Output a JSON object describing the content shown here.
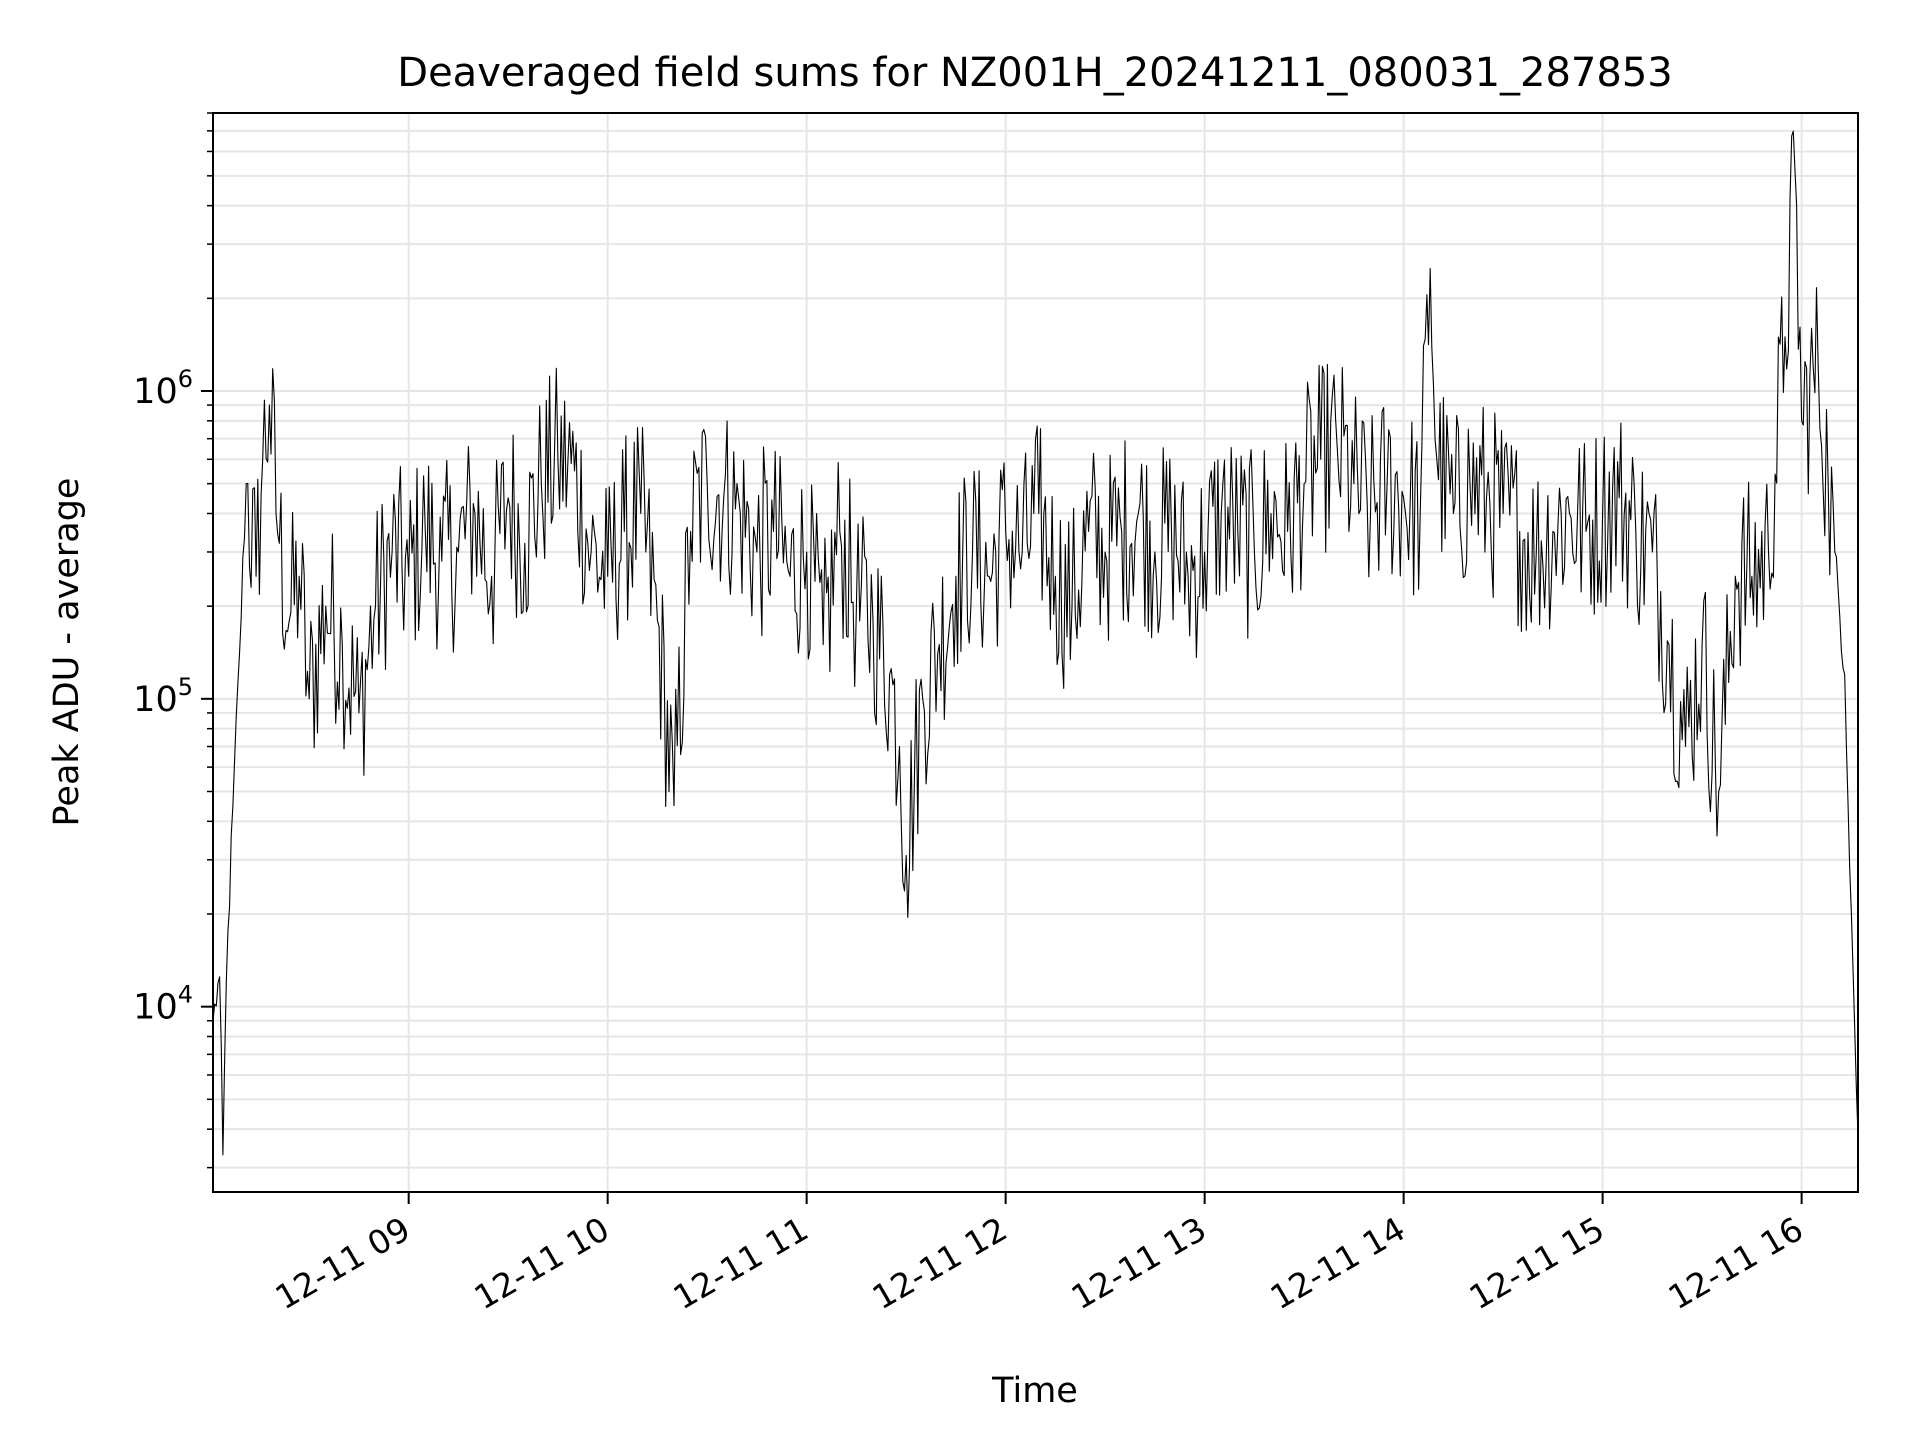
{
  "chart_data": {
    "type": "line",
    "title": "Deaveraged field sums for NZ001H_20241211_080031_287853",
    "xlabel": "Time",
    "ylabel": "Peak ADU - average",
    "x_scale": "time",
    "y_scale": "log",
    "xlim": [
      "2024-12-11 08:01",
      "2024-12-11 16:17"
    ],
    "ylim": [
      2500,
      8000000
    ],
    "x_ticks": [
      {
        "t": "2024-12-11 09:00",
        "label": "12-11 09"
      },
      {
        "t": "2024-12-11 10:00",
        "label": "12-11 10"
      },
      {
        "t": "2024-12-11 11:00",
        "label": "12-11 11"
      },
      {
        "t": "2024-12-11 12:00",
        "label": "12-11 12"
      },
      {
        "t": "2024-12-11 13:00",
        "label": "12-11 13"
      },
      {
        "t": "2024-12-11 14:00",
        "label": "12-11 14"
      },
      {
        "t": "2024-12-11 15:00",
        "label": "12-11 15"
      },
      {
        "t": "2024-12-11 16:00",
        "label": "12-11 16"
      }
    ],
    "y_ticks": [
      {
        "value": 10000,
        "base": "10",
        "exp": "4"
      },
      {
        "value": 100000,
        "base": "10",
        "exp": "5"
      },
      {
        "value": 1000000,
        "base": "10",
        "exp": "6"
      }
    ],
    "grid": true,
    "line_color": "#000000",
    "series": [
      {
        "name": "",
        "points": [
          [
            "2024-12-11 08:01",
            9000
          ],
          [
            "2024-12-11 08:03",
            12500
          ],
          [
            "2024-12-11 08:04",
            3300
          ],
          [
            "2024-12-11 08:05",
            12000
          ],
          [
            "2024-12-11 08:07",
            45000
          ],
          [
            "2024-12-11 08:09",
            140000
          ],
          [
            "2024-12-11 08:11",
            500000
          ],
          [
            "2024-12-11 08:14",
            250000
          ],
          [
            "2024-12-11 08:16",
            600000
          ],
          [
            "2024-12-11 08:18",
            900000
          ],
          [
            "2024-12-11 08:21",
            320000
          ],
          [
            "2024-12-11 08:24",
            180000
          ],
          [
            "2024-12-11 08:27",
            250000
          ],
          [
            "2024-12-11 08:30",
            100000
          ],
          [
            "2024-12-11 08:35",
            200000
          ],
          [
            "2024-12-11 08:40",
            150000
          ],
          [
            "2024-12-11 08:45",
            90000
          ],
          [
            "2024-12-11 08:50",
            200000
          ],
          [
            "2024-12-11 08:55",
            300000
          ],
          [
            "2024-12-11 09:00",
            250000
          ],
          [
            "2024-12-11 09:05",
            350000
          ],
          [
            "2024-12-11 09:10",
            280000
          ],
          [
            "2024-12-11 09:15",
            300000
          ],
          [
            "2024-12-11 09:20",
            400000
          ],
          [
            "2024-12-11 09:25",
            250000
          ],
          [
            "2024-12-11 09:30",
            450000
          ],
          [
            "2024-12-11 09:35",
            320000
          ],
          [
            "2024-12-11 09:40",
            500000
          ],
          [
            "2024-12-11 09:45",
            600000
          ],
          [
            "2024-12-11 09:50",
            550000
          ],
          [
            "2024-12-11 09:55",
            300000
          ],
          [
            "2024-12-11 10:00",
            250000
          ],
          [
            "2024-12-11 10:05",
            350000
          ],
          [
            "2024-12-11 10:10",
            400000
          ],
          [
            "2024-12-11 10:15",
            180000
          ],
          [
            "2024-12-11 10:20",
            45000
          ],
          [
            "2024-12-11 10:25",
            350000
          ],
          [
            "2024-12-11 10:30",
            500000
          ],
          [
            "2024-12-11 10:35",
            450000
          ],
          [
            "2024-12-11 10:40",
            400000
          ],
          [
            "2024-12-11 10:45",
            300000
          ],
          [
            "2024-12-11 10:50",
            350000
          ],
          [
            "2024-12-11 10:55",
            250000
          ],
          [
            "2024-12-11 11:00",
            300000
          ],
          [
            "2024-12-11 11:05",
            150000
          ],
          [
            "2024-12-11 11:10",
            350000
          ],
          [
            "2024-12-11 11:15",
            200000
          ],
          [
            "2024-12-11 11:20",
            180000
          ],
          [
            "2024-12-11 11:25",
            120000
          ],
          [
            "2024-12-11 11:28",
            70000
          ],
          [
            "2024-12-11 11:30",
            31000
          ],
          [
            "2024-12-11 11:35",
            100000
          ],
          [
            "2024-12-11 11:40",
            150000
          ],
          [
            "2024-12-11 11:45",
            250000
          ],
          [
            "2024-12-11 11:50",
            300000
          ],
          [
            "2024-12-11 11:55",
            250000
          ],
          [
            "2024-12-11 12:00",
            350000
          ],
          [
            "2024-12-11 12:05",
            300000
          ],
          [
            "2024-12-11 12:10",
            400000
          ],
          [
            "2024-12-11 12:15",
            250000
          ],
          [
            "2024-12-11 12:20",
            200000
          ],
          [
            "2024-12-11 12:25",
            350000
          ],
          [
            "2024-12-11 12:30",
            300000
          ],
          [
            "2024-12-11 12:35",
            350000
          ],
          [
            "2024-12-11 12:40",
            400000
          ],
          [
            "2024-12-11 12:45",
            300000
          ],
          [
            "2024-12-11 12:50",
            350000
          ],
          [
            "2024-12-11 12:55",
            250000
          ],
          [
            "2024-12-11 13:00",
            300000
          ],
          [
            "2024-12-11 13:05",
            400000
          ],
          [
            "2024-12-11 13:10",
            350000
          ],
          [
            "2024-12-11 13:15",
            300000
          ],
          [
            "2024-12-11 13:20",
            400000
          ],
          [
            "2024-12-11 13:25",
            350000
          ],
          [
            "2024-12-11 13:30",
            500000
          ],
          [
            "2024-12-11 13:35",
            600000
          ],
          [
            "2024-12-11 13:40",
            650000
          ],
          [
            "2024-12-11 13:45",
            500000
          ],
          [
            "2024-12-11 13:50",
            400000
          ],
          [
            "2024-12-11 13:55",
            500000
          ],
          [
            "2024-12-11 14:00",
            450000
          ],
          [
            "2024-12-11 14:05",
            400000
          ],
          [
            "2024-12-11 14:08",
            2500000
          ],
          [
            "2024-12-11 14:10",
            600000
          ],
          [
            "2024-12-11 14:15",
            400000
          ],
          [
            "2024-12-11 14:20",
            500000
          ],
          [
            "2024-12-11 14:25",
            450000
          ],
          [
            "2024-12-11 14:30",
            400000
          ],
          [
            "2024-12-11 14:35",
            350000
          ],
          [
            "2024-12-11 14:40",
            300000
          ],
          [
            "2024-12-11 14:45",
            350000
          ],
          [
            "2024-12-11 14:50",
            400000
          ],
          [
            "2024-12-11 14:55",
            350000
          ],
          [
            "2024-12-11 15:00",
            400000
          ],
          [
            "2024-12-11 15:05",
            450000
          ],
          [
            "2024-12-11 15:10",
            350000
          ],
          [
            "2024-12-11 15:15",
            300000
          ],
          [
            "2024-12-11 15:20",
            150000
          ],
          [
            "2024-12-11 15:25",
            70000
          ],
          [
            "2024-12-11 15:30",
            150000
          ],
          [
            "2024-12-11 15:35",
            50000
          ],
          [
            "2024-12-11 15:40",
            250000
          ],
          [
            "2024-12-11 15:45",
            250000
          ],
          [
            "2024-12-11 15:50",
            300000
          ],
          [
            "2024-12-11 15:55",
            1500000
          ],
          [
            "2024-12-11 15:58",
            5200000
          ],
          [
            "2024-12-11 16:00",
            800000
          ],
          [
            "2024-12-11 16:05",
            1200000
          ],
          [
            "2024-12-11 16:08",
            500000
          ],
          [
            "2024-12-11 16:10",
            300000
          ],
          [
            "2024-12-11 16:13",
            120000
          ],
          [
            "2024-12-11 16:15",
            20000
          ],
          [
            "2024-12-11 16:17",
            3800
          ]
        ]
      }
    ]
  }
}
